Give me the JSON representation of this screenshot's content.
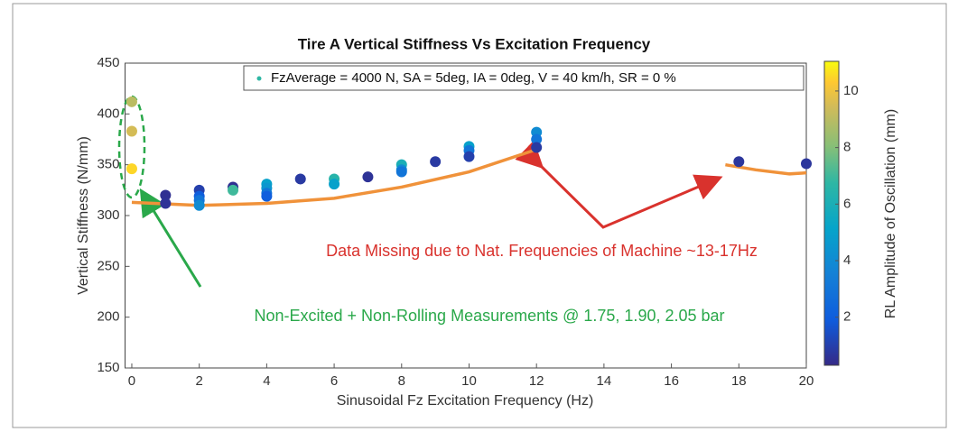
{
  "chart_data": {
    "type": "scatter",
    "title": "Tire A Vertical Stiffness Vs Excitation Frequency",
    "x_label": "Sinusoidal Fz Excitation Frequency (Hz)",
    "y_label": "Vertical Stiffness (N/mm)",
    "colorbar_label": "RL Amplitude of Oscillation (mm)",
    "xlim": [
      -0.2,
      20
    ],
    "ylim": [
      150,
      450
    ],
    "xticks": [
      0,
      2,
      4,
      6,
      8,
      10,
      12,
      14,
      16,
      18,
      20
    ],
    "yticks": [
      150,
      200,
      250,
      300,
      350,
      400,
      450
    ],
    "clim": [
      0.3,
      11.05
    ],
    "cticks": [
      2,
      4,
      6,
      8,
      10
    ],
    "colormap": "parula",
    "legend_position": "top",
    "series": [
      {
        "name": "FzAverage = 4000 N, SA = 5deg, IA = 0deg, V = 40 km/h, SR = 0 %",
        "x": [
          0,
          0,
          0,
          1,
          1,
          2,
          2,
          2,
          2,
          3,
          3,
          4,
          4,
          4,
          4,
          5,
          6,
          6,
          7,
          8,
          8,
          8,
          9,
          10,
          10,
          10,
          12,
          12,
          12,
          18,
          20
        ],
        "values": [
          412,
          383,
          346,
          320,
          312,
          325,
          319,
          315,
          310,
          328,
          325,
          331,
          327,
          322,
          319,
          336,
          336,
          331,
          338,
          350,
          345,
          343,
          353,
          368,
          364,
          358,
          382,
          375,
          367,
          353,
          351
        ],
        "c": [
          9,
          9.5,
          10.5,
          0.5,
          0.6,
          1,
          2,
          3,
          4,
          0.5,
          7,
          5,
          4.5,
          3,
          2,
          0.8,
          6.5,
          5,
          0.6,
          6,
          4,
          3,
          0.8,
          5,
          3,
          1,
          4,
          3,
          0.8,
          0.7,
          0.7
        ]
      }
    ],
    "fit_lines": [
      {
        "color": "#f0923a",
        "x": [
          0,
          2,
          4,
          6,
          8,
          10,
          12
        ],
        "values": [
          313,
          310,
          312,
          317,
          328,
          343,
          365
        ]
      },
      {
        "color": "#f0923a",
        "x": [
          17.6,
          18.5,
          19.5,
          20
        ],
        "values": [
          350,
          345,
          341,
          342
        ]
      }
    ],
    "annotations": [
      {
        "text": "Data Missing due to Nat. Frequencies of Machine ~13-17Hz",
        "color": "#d9322d"
      },
      {
        "text": "Non-Excited + Non-Rolling Measurements @ 1.75, 1.90, 2.05 bar",
        "color": "#2aa84a"
      }
    ]
  }
}
